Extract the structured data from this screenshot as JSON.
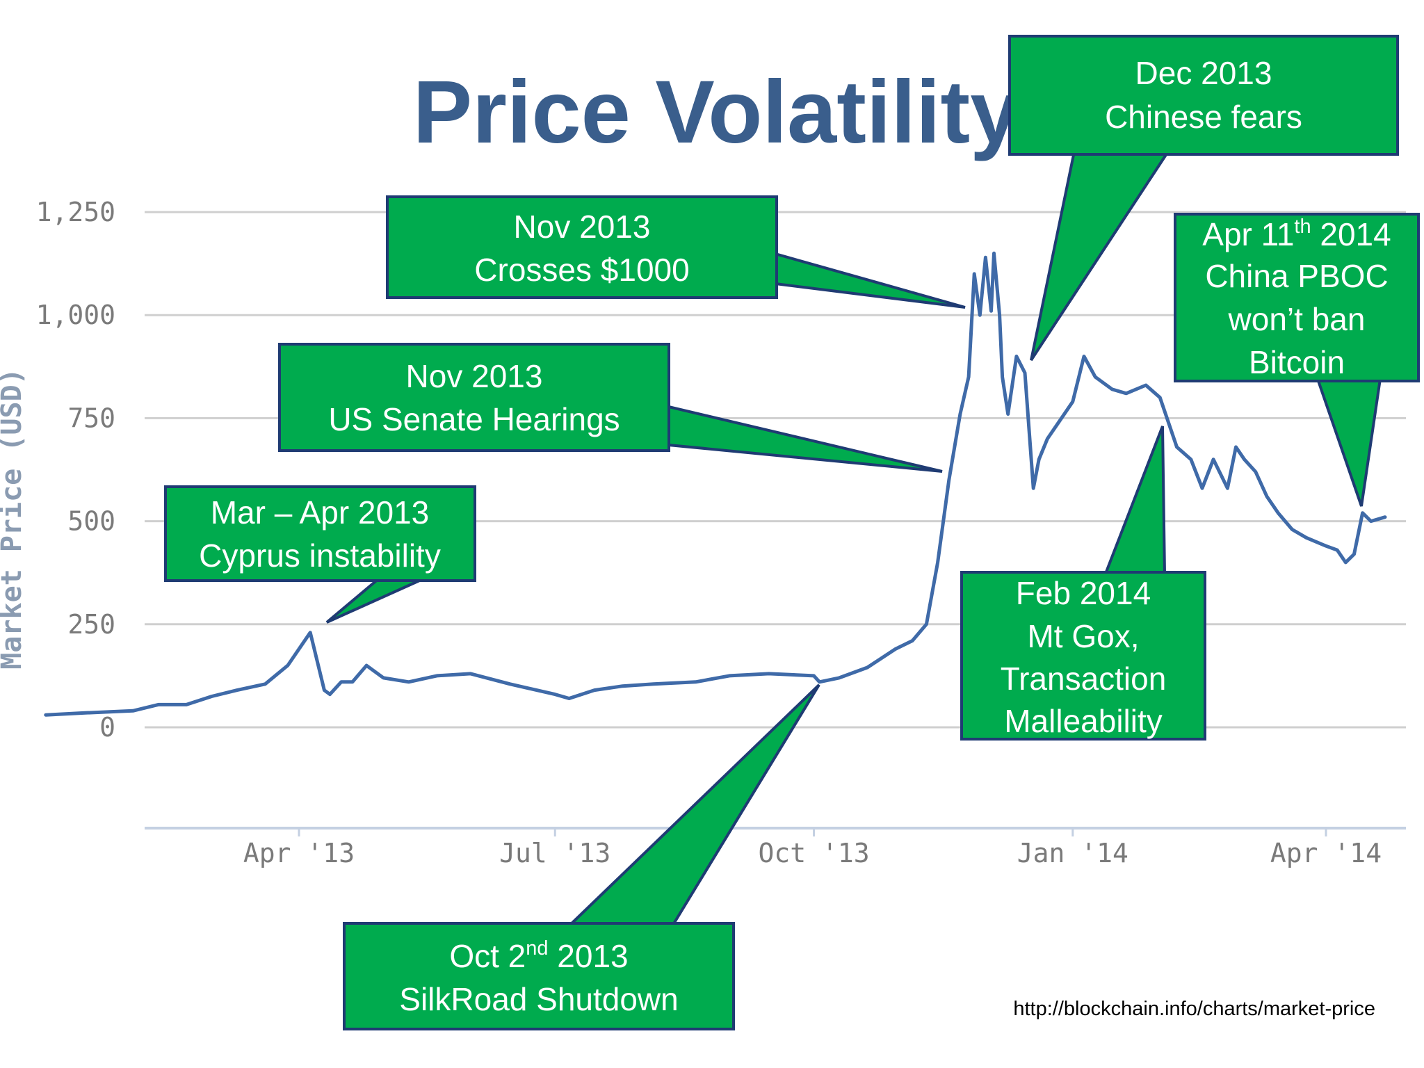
{
  "title": "Price Volatility",
  "source": "http://blockchain.info/charts/market-price",
  "colors": {
    "title": "#3a5e8c",
    "line": "#3f6aa8",
    "callout_fill": "#00ab4e",
    "callout_border": "#1f3b73",
    "grid": "#cfcfcf"
  },
  "chart_data": {
    "type": "line",
    "title": "Price Volatility",
    "ylabel": "Market Price (USD)",
    "xlabel": "",
    "ylim": [
      0,
      1250
    ],
    "yticks": [
      0,
      250,
      500,
      750,
      1000,
      1250
    ],
    "ytick_labels": [
      "0",
      "250",
      "500",
      "750",
      "1,000",
      "1,250"
    ],
    "xtick_labels": [
      "Apr '13",
      "Jul '13",
      "Oct '13",
      "Jan '14",
      "Apr '14"
    ],
    "xtick_dates": [
      "2013-04-01",
      "2013-07-01",
      "2013-10-01",
      "2014-01-01",
      "2014-04-01"
    ],
    "xlim": [
      "2013-01-01",
      "2014-04-30"
    ],
    "grid": true,
    "series": [
      {
        "x": [
          "2013-01-01",
          "2013-01-15",
          "2013-02-01",
          "2013-02-10",
          "2013-02-20",
          "2013-03-01",
          "2013-03-10",
          "2013-03-20",
          "2013-03-28",
          "2013-04-05",
          "2013-04-10",
          "2013-04-12",
          "2013-04-16",
          "2013-04-20",
          "2013-04-25",
          "2013-05-01",
          "2013-05-10",
          "2013-05-20",
          "2013-06-01",
          "2013-06-15",
          "2013-07-01",
          "2013-07-06",
          "2013-07-15",
          "2013-07-25",
          "2013-08-05",
          "2013-08-20",
          "2013-09-01",
          "2013-09-15",
          "2013-10-01",
          "2013-10-03",
          "2013-10-10",
          "2013-10-20",
          "2013-10-30",
          "2013-11-05",
          "2013-11-10",
          "2013-11-14",
          "2013-11-18",
          "2013-11-22",
          "2013-11-25",
          "2013-11-27",
          "2013-11-29",
          "2013-12-01",
          "2013-12-03",
          "2013-12-04",
          "2013-12-06",
          "2013-12-07",
          "2013-12-09",
          "2013-12-12",
          "2013-12-15",
          "2013-12-18",
          "2013-12-20",
          "2013-12-23",
          "2013-12-27",
          "2014-01-01",
          "2014-01-05",
          "2014-01-09",
          "2014-01-15",
          "2014-01-20",
          "2014-01-27",
          "2014-02-01",
          "2014-02-07",
          "2014-02-12",
          "2014-02-16",
          "2014-02-20",
          "2014-02-25",
          "2014-02-28",
          "2014-03-03",
          "2014-03-07",
          "2014-03-11",
          "2014-03-15",
          "2014-03-20",
          "2014-03-25",
          "2014-04-01",
          "2014-04-05",
          "2014-04-08",
          "2014-04-11",
          "2014-04-14",
          "2014-04-17",
          "2014-04-22"
        ],
        "y": [
          30,
          35,
          40,
          55,
          55,
          75,
          90,
          105,
          150,
          230,
          90,
          80,
          110,
          110,
          150,
          120,
          110,
          125,
          130,
          105,
          80,
          70,
          90,
          100,
          105,
          110,
          125,
          130,
          125,
          110,
          120,
          145,
          190,
          210,
          250,
          400,
          600,
          760,
          850,
          1100,
          1000,
          1140,
          1010,
          1150,
          1000,
          850,
          760,
          900,
          860,
          580,
          650,
          700,
          740,
          790,
          900,
          850,
          820,
          810,
          830,
          800,
          680,
          650,
          580,
          650,
          580,
          680,
          650,
          620,
          560,
          520,
          480,
          460,
          440,
          430,
          400,
          420,
          520,
          500,
          510
        ]
      }
    ],
    "annotations": [
      {
        "id": "cyprus",
        "lines": [
          "Mar – Apr 2013",
          "Cyprus instability"
        ]
      },
      {
        "id": "senate",
        "lines": [
          "Nov  2013",
          "US Senate Hearings"
        ]
      },
      {
        "id": "crosses",
        "lines": [
          "Nov  2013",
          "Crosses $1000"
        ]
      },
      {
        "id": "chinese",
        "lines": [
          "Dec 2013",
          "Chinese fears"
        ]
      },
      {
        "id": "pboc",
        "lines": [
          "Apr 11",
          "th",
          " 2014",
          "China PBOC",
          "won’t ban",
          "Bitcoin"
        ]
      },
      {
        "id": "gox",
        "lines": [
          "Feb 2014",
          "Mt Gox,",
          "Transaction",
          "Malleability"
        ]
      },
      {
        "id": "silkroad",
        "lines": [
          "Oct 2",
          "nd",
          " 2013",
          "SilkRoad Shutdown"
        ]
      }
    ]
  }
}
